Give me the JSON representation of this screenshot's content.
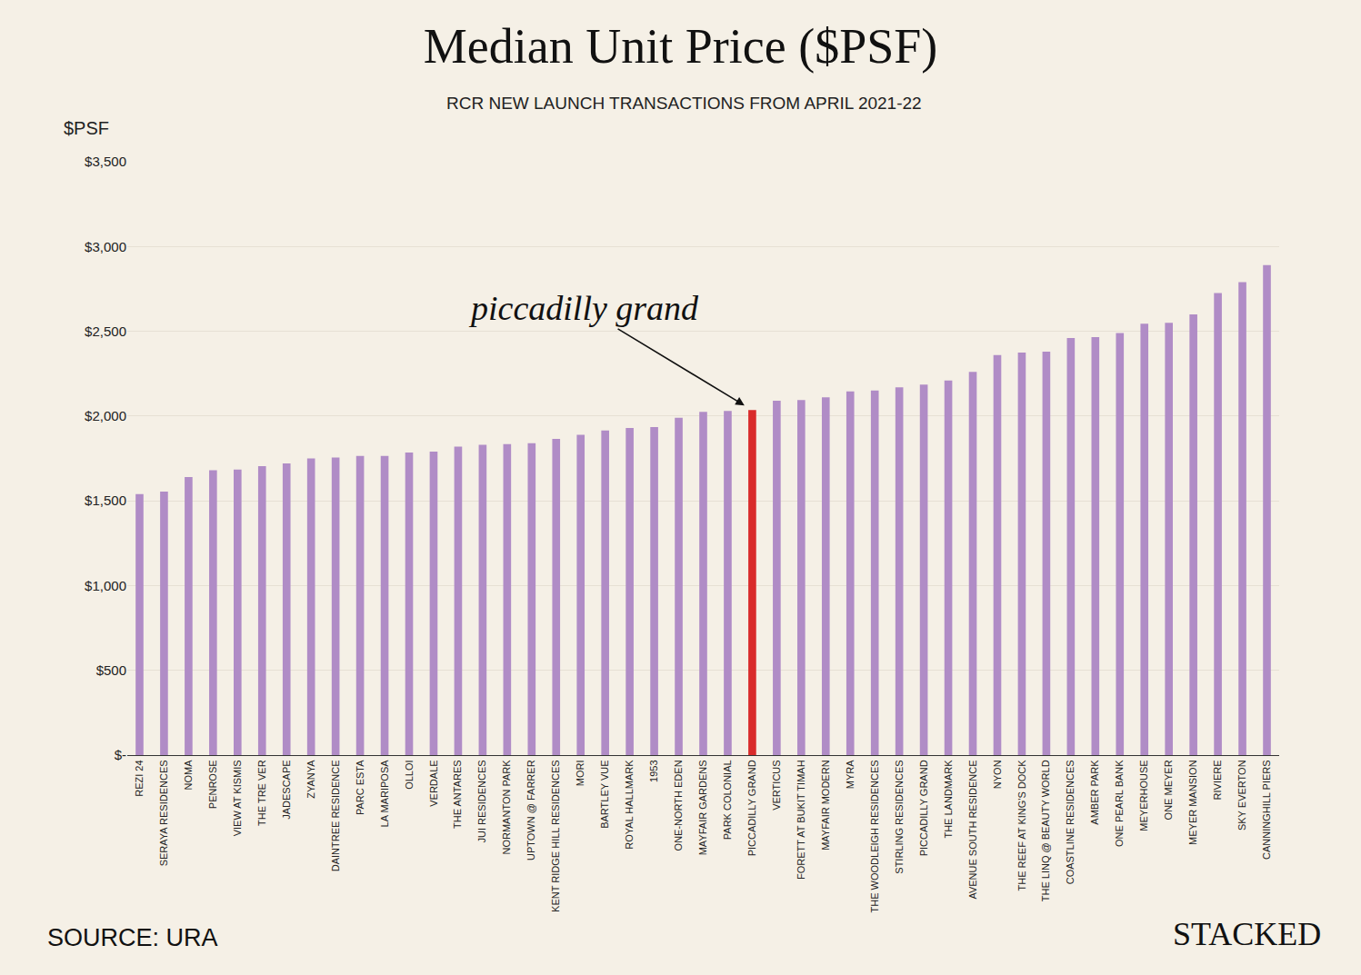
{
  "chart_data": {
    "type": "bar",
    "title": "Median Unit Price ($PSF)",
    "subtitle": "RCR NEW LAUNCH TRANSACTIONS FROM APRIL 2021-22",
    "y_label": "$PSF",
    "source": "SOURCE: URA",
    "brand": "STACKED",
    "categories": [
      "REZI 24",
      "SERAYA RESIDENCES",
      "NOMA",
      "PENROSE",
      "VIEW AT KISMIS",
      "THE TRE VER",
      "JADESCAPE",
      "ZYANYA",
      "DAINTREE RESIDENCE",
      "PARC ESTA",
      "LA MARIPOSA",
      "OLLOI",
      "VERDALE",
      "THE ANTARES",
      "JUI RESIDENCES",
      "NORMANTON PARK",
      "UPTOWN @ FARRER",
      "KENT RIDGE HILL RESIDENCES",
      "MORI",
      "BARTLEY VUE",
      "ROYAL HALLMARK",
      "1953",
      "ONE-NORTH EDEN",
      "MAYFAIR GARDENS",
      "PARK COLONIAL",
      "PICCADILLY GRAND",
      "VERTICUS",
      "FORETT AT BUKIT TIMAH",
      "MAYFAIR MODERN",
      "MYRA",
      "THE WOODLEIGH RESIDENCES",
      "STIRLING RESIDENCES",
      "PICCADILLY GRAND",
      "THE LANDMARK",
      "AVENUE SOUTH RESIDENCE",
      "NYON",
      "THE REEF AT KING'S DOCK",
      "THE LINQ @ BEAUTY WORLD",
      "COASTLINE RESIDENCES",
      "AMBER PARK",
      "ONE PEARL BANK",
      "MEYERHOUSE",
      "ONE MEYER",
      "MEYER MANSION",
      "RIVIERE",
      "SKY EVERTON",
      "CANNINGHILL PIERS"
    ],
    "values": [
      1540,
      1555,
      1640,
      1680,
      1685,
      1705,
      1720,
      1750,
      1755,
      1765,
      1765,
      1785,
      1790,
      1820,
      1830,
      1835,
      1840,
      1865,
      1890,
      1915,
      1930,
      1935,
      1990,
      2025,
      2030,
      2035,
      2090,
      2095,
      2110,
      2145,
      2150,
      2170,
      2185,
      2210,
      2260,
      2360,
      2375,
      2380,
      2460,
      2465,
      2490,
      2545,
      2550,
      2600,
      2725,
      2790,
      2890
    ],
    "colors": [
      "#b08cc6",
      "#b08cc6",
      "#b08cc6",
      "#b08cc6",
      "#b08cc6",
      "#b08cc6",
      "#b08cc6",
      "#b08cc6",
      "#b08cc6",
      "#b08cc6",
      "#b08cc6",
      "#b08cc6",
      "#b08cc6",
      "#b08cc6",
      "#b08cc6",
      "#b08cc6",
      "#b08cc6",
      "#b08cc6",
      "#b08cc6",
      "#b08cc6",
      "#b08cc6",
      "#b08cc6",
      "#b08cc6",
      "#b08cc6",
      "#b08cc6",
      "#d92b2b",
      "#b08cc6",
      "#b08cc6",
      "#b08cc6",
      "#b08cc6",
      "#b08cc6",
      "#b08cc6",
      "#b08cc6",
      "#b08cc6",
      "#b08cc6",
      "#b08cc6",
      "#b08cc6",
      "#b08cc6",
      "#b08cc6",
      "#b08cc6",
      "#b08cc6",
      "#b08cc6",
      "#b08cc6",
      "#b08cc6",
      "#b08cc6",
      "#b08cc6",
      "#b08cc6"
    ],
    "ylim": [
      0,
      3500
    ],
    "yticks": [
      {
        "value": 0,
        "label": "$-"
      },
      {
        "value": 500,
        "label": "$500"
      },
      {
        "value": 1000,
        "label": "$1,000"
      },
      {
        "value": 1500,
        "label": "$1,500"
      },
      {
        "value": 2000,
        "label": "$2,000"
      },
      {
        "value": 2500,
        "label": "$2,500"
      },
      {
        "value": 3000,
        "label": "$3,000"
      },
      {
        "value": 3500,
        "label": "$3,500"
      }
    ],
    "grid": true,
    "annotations": [
      {
        "text": "piccadilly grand",
        "index": 25
      }
    ]
  }
}
